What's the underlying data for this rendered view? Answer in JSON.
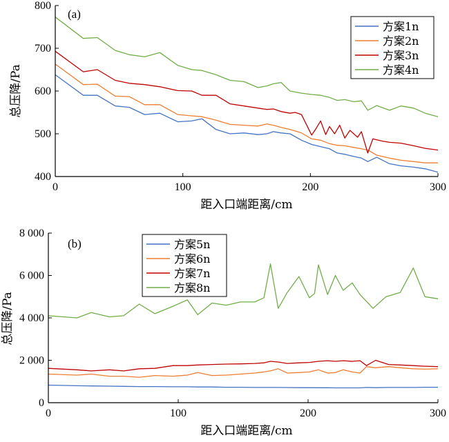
{
  "chart_data": [
    {
      "type": "line",
      "panel_label": "(a)",
      "xlabel": "距入口端距离/cm",
      "ylabel": "总压降/Pa",
      "xlim": [
        0,
        300
      ],
      "ylim": [
        400,
        800
      ],
      "x_ticks": [
        0,
        100,
        200,
        300
      ],
      "y_ticks": [
        400,
        500,
        600,
        700,
        800
      ],
      "x_tick_labels": [
        "0",
        "100",
        "200",
        "300"
      ],
      "y_tick_labels": [
        "400",
        "500",
        "600",
        "700",
        "800"
      ],
      "legend_position": "top-right",
      "series": [
        {
          "name": "方案1n",
          "color": "#4472c4",
          "x": [
            0,
            22,
            33,
            47,
            58,
            70,
            82,
            96,
            107,
            115,
            126,
            137,
            148,
            159,
            166,
            171,
            177,
            184,
            193,
            201,
            208,
            215,
            221,
            227,
            234,
            240,
            245,
            252,
            262,
            271,
            281,
            290,
            300
          ],
          "y": [
            638,
            590,
            590,
            565,
            562,
            545,
            548,
            528,
            530,
            535,
            510,
            500,
            502,
            498,
            500,
            505,
            502,
            500,
            485,
            475,
            470,
            465,
            455,
            452,
            447,
            443,
            435,
            445,
            430,
            425,
            422,
            418,
            410
          ]
        },
        {
          "name": "方案2n",
          "color": "#ed7d31",
          "x": [
            0,
            22,
            33,
            47,
            58,
            70,
            82,
            96,
            107,
            115,
            126,
            137,
            148,
            159,
            166,
            171,
            177,
            184,
            193,
            201,
            208,
            215,
            221,
            227,
            234,
            240,
            245,
            252,
            262,
            271,
            281,
            290,
            300
          ],
          "y": [
            663,
            615,
            616,
            588,
            587,
            568,
            568,
            545,
            542,
            540,
            532,
            522,
            520,
            518,
            523,
            520,
            515,
            510,
            502,
            488,
            485,
            477,
            473,
            472,
            468,
            465,
            462,
            450,
            443,
            438,
            435,
            432,
            432
          ]
        },
        {
          "name": "方案3n",
          "color": "#c00000",
          "x": [
            0,
            22,
            33,
            47,
            58,
            70,
            82,
            96,
            107,
            115,
            126,
            137,
            148,
            159,
            166,
            171,
            177,
            184,
            188,
            193,
            201,
            204,
            208,
            212,
            215,
            219,
            223,
            227,
            231,
            234,
            237,
            240,
            245,
            249,
            256,
            262,
            271,
            281,
            290,
            300
          ],
          "y": [
            693,
            645,
            650,
            625,
            618,
            615,
            610,
            601,
            600,
            590,
            590,
            570,
            565,
            560,
            557,
            558,
            552,
            548,
            550,
            545,
            497,
            510,
            530,
            498,
            517,
            500,
            520,
            490,
            508,
            500,
            492,
            505,
            455,
            488,
            483,
            480,
            478,
            472,
            466,
            462
          ]
        },
        {
          "name": "方案4n",
          "color": "#70ad47",
          "x": [
            0,
            22,
            33,
            47,
            58,
            70,
            82,
            96,
            107,
            115,
            126,
            137,
            148,
            159,
            166,
            171,
            177,
            184,
            193,
            201,
            208,
            215,
            221,
            227,
            234,
            240,
            245,
            252,
            262,
            271,
            281,
            290,
            300
          ],
          "y": [
            773,
            723,
            725,
            695,
            685,
            680,
            690,
            660,
            650,
            648,
            638,
            625,
            622,
            608,
            612,
            617,
            620,
            600,
            595,
            592,
            590,
            585,
            578,
            580,
            575,
            577,
            555,
            566,
            555,
            565,
            560,
            548,
            540
          ]
        }
      ]
    },
    {
      "type": "line",
      "panel_label": "(b)",
      "xlabel": "距入口端距离/cm",
      "ylabel": "总压降/Pa",
      "xlim": [
        0,
        300
      ],
      "ylim": [
        0,
        8000
      ],
      "x_ticks": [
        0,
        100,
        200,
        300
      ],
      "y_ticks": [
        0,
        2000,
        4000,
        6000,
        8000
      ],
      "x_tick_labels": [
        "0",
        "100",
        "200",
        "300"
      ],
      "y_tick_labels": [
        "0",
        "2 000",
        "4 000",
        "6 000",
        "8 000"
      ],
      "legend_position": "top-left",
      "series": [
        {
          "name": "方案5n",
          "color": "#4472c4",
          "x": [
            0,
            22,
            33,
            47,
            58,
            70,
            82,
            96,
            107,
            115,
            126,
            137,
            148,
            159,
            166,
            171,
            177,
            184,
            193,
            201,
            208,
            215,
            221,
            227,
            234,
            240,
            245,
            252,
            262,
            271,
            281,
            290,
            300
          ],
          "y": [
            830,
            800,
            790,
            780,
            770,
            760,
            760,
            750,
            750,
            740,
            740,
            730,
            730,
            720,
            720,
            720,
            720,
            715,
            710,
            710,
            705,
            705,
            700,
            700,
            700,
            700,
            720,
            710,
            720,
            720,
            720,
            730,
            730
          ]
        },
        {
          "name": "方案6n",
          "color": "#ed7d31",
          "x": [
            0,
            22,
            33,
            47,
            58,
            70,
            82,
            96,
            107,
            115,
            126,
            137,
            148,
            159,
            166,
            171,
            177,
            184,
            193,
            201,
            208,
            215,
            221,
            227,
            234,
            240,
            245,
            252,
            262,
            271,
            281,
            290,
            300
          ],
          "y": [
            1350,
            1300,
            1350,
            1250,
            1250,
            1200,
            1280,
            1250,
            1300,
            1420,
            1280,
            1300,
            1350,
            1400,
            1450,
            1500,
            1600,
            1400,
            1420,
            1450,
            1550,
            1400,
            1420,
            1550,
            1450,
            1400,
            1700,
            1650,
            1700,
            1650,
            1600,
            1580,
            1600
          ]
        },
        {
          "name": "方案7n",
          "color": "#c00000",
          "x": [
            0,
            22,
            33,
            47,
            58,
            70,
            82,
            96,
            107,
            115,
            126,
            137,
            148,
            159,
            166,
            171,
            177,
            184,
            193,
            201,
            208,
            215,
            221,
            227,
            234,
            240,
            245,
            252,
            262,
            271,
            281,
            290,
            300
          ],
          "y": [
            1620,
            1550,
            1500,
            1550,
            1500,
            1600,
            1620,
            1750,
            1750,
            1780,
            1800,
            1820,
            1830,
            1850,
            1880,
            1950,
            1920,
            1850,
            1880,
            1900,
            1950,
            1980,
            1950,
            1980,
            1950,
            1980,
            1750,
            2000,
            1800,
            1780,
            1750,
            1720,
            1700
          ]
        },
        {
          "name": "方案8n",
          "color": "#70ad47",
          "x": [
            0,
            22,
            33,
            47,
            58,
            70,
            82,
            96,
            107,
            115,
            126,
            137,
            148,
            159,
            166,
            171,
            177,
            184,
            193,
            201,
            205,
            208,
            215,
            221,
            227,
            234,
            240,
            250,
            260,
            271,
            281,
            290,
            300
          ],
          "y": [
            4100,
            4000,
            4250,
            4050,
            4100,
            4650,
            4200,
            4550,
            4850,
            4150,
            4700,
            4600,
            4750,
            4750,
            4950,
            6550,
            4450,
            5200,
            5950,
            4950,
            5150,
            6500,
            5100,
            6000,
            5300,
            5650,
            5100,
            4450,
            5000,
            5200,
            6350,
            5000,
            4900
          ]
        }
      ]
    }
  ]
}
